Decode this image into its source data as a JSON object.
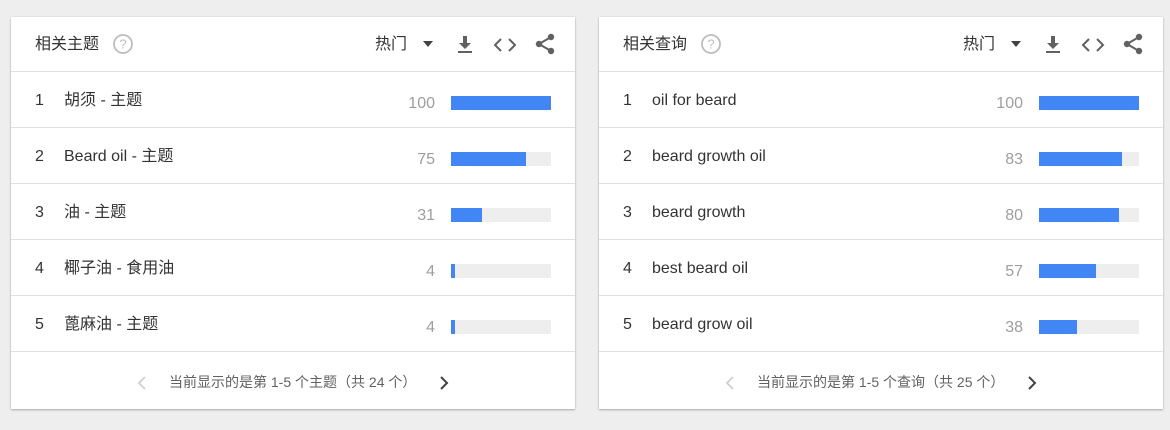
{
  "colors": {
    "bar_fill": "#4285f4",
    "bar_track": "#eeeeee",
    "value_text": "#9e9e9e"
  },
  "panels": [
    {
      "id": "topics",
      "title": "相关主题",
      "sort_label": "热门",
      "icons": [
        "help-icon",
        "dropdown-icon",
        "download-icon",
        "embed-icon",
        "share-icon"
      ],
      "rows": [
        {
          "rank": "1",
          "term": "胡须 - 主题",
          "value": 100
        },
        {
          "rank": "2",
          "term": "Beard oil - 主题",
          "value": 75
        },
        {
          "rank": "3",
          "term": "油 - 主题",
          "value": 31
        },
        {
          "rank": "4",
          "term": "椰子油 - 食用油",
          "value": 4
        },
        {
          "rank": "5",
          "term": "蓖麻油 - 主题",
          "value": 4
        }
      ],
      "pager": "当前显示的是第 1-5 个主题（共 24 个）"
    },
    {
      "id": "queries",
      "title": "相关查询",
      "sort_label": "热门",
      "icons": [
        "help-icon",
        "dropdown-icon",
        "download-icon",
        "embed-icon",
        "share-icon"
      ],
      "rows": [
        {
          "rank": "1",
          "term": "oil for beard",
          "value": 100
        },
        {
          "rank": "2",
          "term": "beard growth oil",
          "value": 83
        },
        {
          "rank": "3",
          "term": "beard growth",
          "value": 80
        },
        {
          "rank": "4",
          "term": "best beard oil",
          "value": 57
        },
        {
          "rank": "5",
          "term": "beard grow oil",
          "value": 38
        }
      ],
      "pager": "当前显示的是第 1-5 个查询（共 25 个）"
    }
  ]
}
